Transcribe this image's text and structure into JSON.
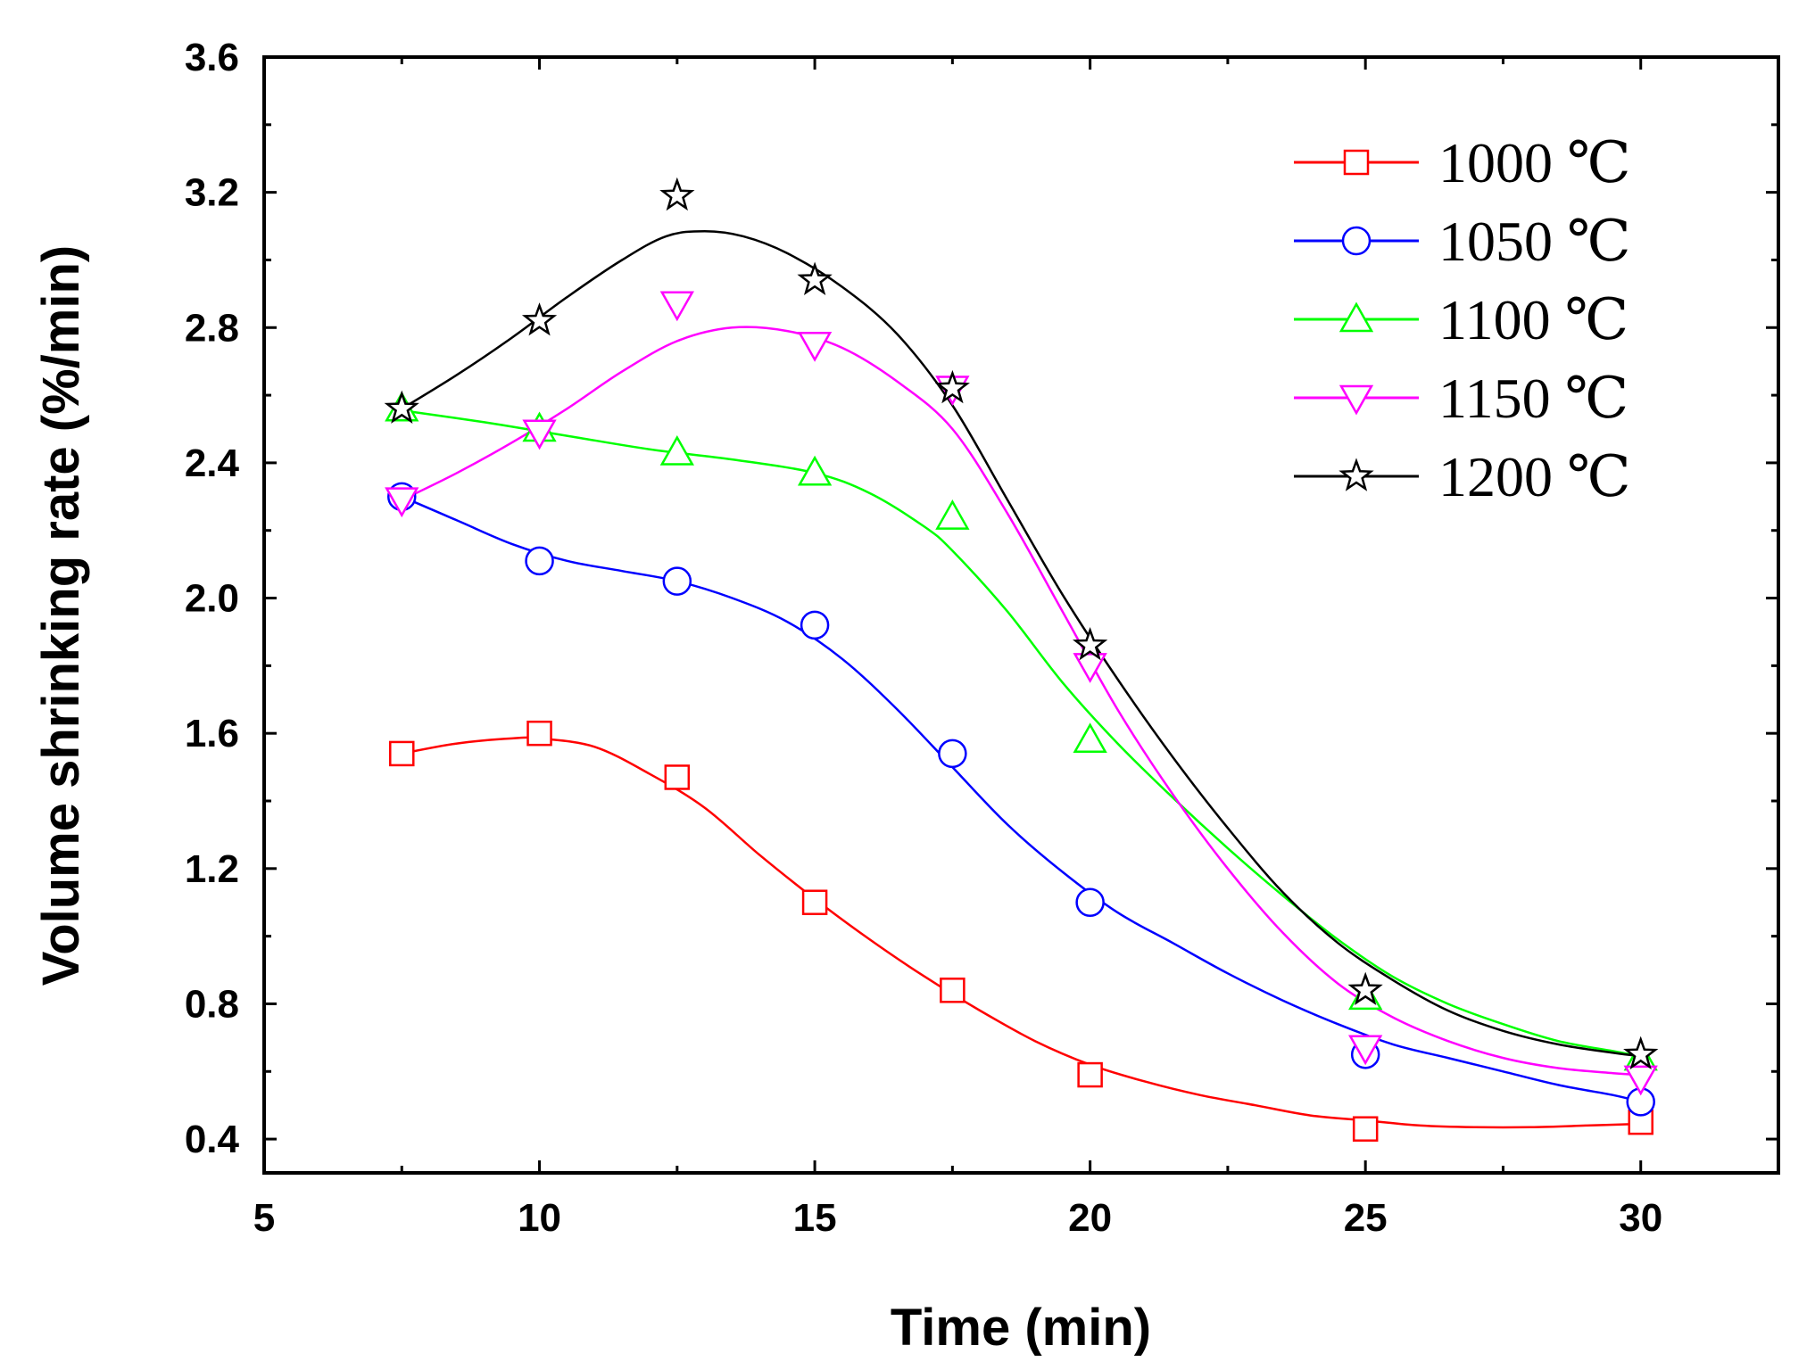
{
  "chart_data": {
    "type": "line",
    "title": "",
    "xlabel": "Time (min)",
    "ylabel": "Volume shrinking rate (%/min)",
    "xlim": [
      5,
      32.5
    ],
    "ylim": [
      0.3,
      3.6
    ],
    "xticks": [
      5,
      10,
      15,
      20,
      25,
      30
    ],
    "xtick_labels": [
      "5",
      "10",
      "15",
      "20",
      "25",
      "30"
    ],
    "yticks": [
      0.4,
      0.8,
      1.2,
      1.6,
      2.0,
      2.4,
      2.8,
      3.2,
      3.6
    ],
    "ytick_labels": [
      "0.4",
      "0.8",
      "1.2",
      "1.6",
      "2.0",
      "2.4",
      "2.8",
      "3.2",
      "3.6"
    ],
    "grid": false,
    "legend_position": "top-right",
    "x": [
      7.5,
      10,
      12.5,
      15,
      17.5,
      20,
      25,
      30
    ],
    "series": [
      {
        "name": "1000 ℃",
        "color": "#ff0000",
        "marker": "square",
        "values": [
          1.54,
          1.6,
          1.47,
          1.1,
          0.84,
          0.59,
          0.43,
          0.45
        ],
        "fit": [
          [
            7.5,
            1.54
          ],
          [
            8.5,
            1.57
          ],
          [
            9.5,
            1.585
          ],
          [
            10,
            1.585
          ],
          [
            11,
            1.56
          ],
          [
            12,
            1.48
          ],
          [
            13,
            1.38
          ],
          [
            14,
            1.24
          ],
          [
            15,
            1.11
          ],
          [
            16,
            0.99
          ],
          [
            17,
            0.88
          ],
          [
            18,
            0.78
          ],
          [
            19,
            0.69
          ],
          [
            20,
            0.62
          ],
          [
            21,
            0.57
          ],
          [
            22,
            0.53
          ],
          [
            23,
            0.5
          ],
          [
            24,
            0.47
          ],
          [
            25,
            0.455
          ],
          [
            26,
            0.44
          ],
          [
            27,
            0.435
          ],
          [
            28,
            0.435
          ],
          [
            29,
            0.44
          ],
          [
            30,
            0.445
          ]
        ]
      },
      {
        "name": "1050 ℃",
        "color": "#0000ff",
        "marker": "circle",
        "values": [
          2.3,
          2.11,
          2.05,
          1.92,
          1.54,
          1.1,
          0.65,
          0.51
        ],
        "fit": [
          [
            7.5,
            2.3
          ],
          [
            8.5,
            2.23
          ],
          [
            9.5,
            2.16
          ],
          [
            10.5,
            2.11
          ],
          [
            11.5,
            2.08
          ],
          [
            12.5,
            2.05
          ],
          [
            13.5,
            2.0
          ],
          [
            14.5,
            1.93
          ],
          [
            15.5,
            1.82
          ],
          [
            16.5,
            1.67
          ],
          [
            17.5,
            1.5
          ],
          [
            18.5,
            1.33
          ],
          [
            19.5,
            1.19
          ],
          [
            20.5,
            1.07
          ],
          [
            21.5,
            0.98
          ],
          [
            22.5,
            0.89
          ],
          [
            23.5,
            0.81
          ],
          [
            24.5,
            0.74
          ],
          [
            25.5,
            0.68
          ],
          [
            26.5,
            0.64
          ],
          [
            27.5,
            0.6
          ],
          [
            28.5,
            0.56
          ],
          [
            29.5,
            0.53
          ],
          [
            30,
            0.51
          ]
        ]
      },
      {
        "name": "1100 ℃",
        "color": "#00ff00",
        "marker": "triangle-up",
        "values": [
          2.56,
          2.5,
          2.43,
          2.37,
          2.24,
          1.58,
          0.82,
          0.64
        ],
        "fit": [
          [
            7.5,
            2.555
          ],
          [
            9,
            2.52
          ],
          [
            10.5,
            2.48
          ],
          [
            12,
            2.44
          ],
          [
            13.5,
            2.41
          ],
          [
            15,
            2.37
          ],
          [
            16,
            2.31
          ],
          [
            17,
            2.21
          ],
          [
            17.5,
            2.14
          ],
          [
            18.5,
            1.96
          ],
          [
            19.5,
            1.75
          ],
          [
            20.5,
            1.57
          ],
          [
            21.5,
            1.41
          ],
          [
            22.5,
            1.26
          ],
          [
            23.5,
            1.12
          ],
          [
            24.5,
            0.99
          ],
          [
            25.5,
            0.88
          ],
          [
            26.5,
            0.8
          ],
          [
            27.5,
            0.74
          ],
          [
            28.5,
            0.69
          ],
          [
            29.5,
            0.66
          ],
          [
            30,
            0.645
          ]
        ]
      },
      {
        "name": "1150 ℃",
        "color": "#ff00ff",
        "marker": "triangle-down",
        "values": [
          2.29,
          2.49,
          2.87,
          2.75,
          2.62,
          1.8,
          0.67,
          0.58
        ],
        "fit": [
          [
            7.5,
            2.29
          ],
          [
            8.5,
            2.37
          ],
          [
            9.5,
            2.46
          ],
          [
            10.5,
            2.56
          ],
          [
            11.5,
            2.67
          ],
          [
            12.5,
            2.76
          ],
          [
            13.5,
            2.8
          ],
          [
            14.5,
            2.79
          ],
          [
            15.5,
            2.74
          ],
          [
            16.5,
            2.64
          ],
          [
            17.5,
            2.5
          ],
          [
            18.5,
            2.25
          ],
          [
            19.5,
            1.96
          ],
          [
            20.5,
            1.67
          ],
          [
            21.5,
            1.42
          ],
          [
            22.5,
            1.2
          ],
          [
            23.5,
            1.01
          ],
          [
            24.5,
            0.86
          ],
          [
            25.5,
            0.76
          ],
          [
            26.5,
            0.69
          ],
          [
            27.5,
            0.64
          ],
          [
            28.5,
            0.61
          ],
          [
            29.5,
            0.595
          ],
          [
            30,
            0.59
          ]
        ]
      },
      {
        "name": "1200 ℃",
        "color": "#000000",
        "marker": "star",
        "values": [
          2.56,
          2.82,
          3.19,
          2.94,
          2.62,
          1.86,
          0.84,
          0.65
        ],
        "fit": [
          [
            7.5,
            2.56
          ],
          [
            8.5,
            2.66
          ],
          [
            9.5,
            2.77
          ],
          [
            10.5,
            2.89
          ],
          [
            11.5,
            3.0
          ],
          [
            12.3,
            3.07
          ],
          [
            13,
            3.085
          ],
          [
            13.7,
            3.07
          ],
          [
            14.5,
            3.02
          ],
          [
            15.5,
            2.92
          ],
          [
            16.5,
            2.78
          ],
          [
            17.5,
            2.57
          ],
          [
            18.5,
            2.29
          ],
          [
            19.5,
            2.01
          ],
          [
            20.5,
            1.76
          ],
          [
            21.5,
            1.53
          ],
          [
            22.5,
            1.32
          ],
          [
            23.5,
            1.13
          ],
          [
            24.5,
            0.98
          ],
          [
            25.5,
            0.87
          ],
          [
            26.5,
            0.78
          ],
          [
            27.5,
            0.72
          ],
          [
            28.5,
            0.68
          ],
          [
            29.5,
            0.655
          ],
          [
            30,
            0.645
          ]
        ]
      }
    ]
  }
}
